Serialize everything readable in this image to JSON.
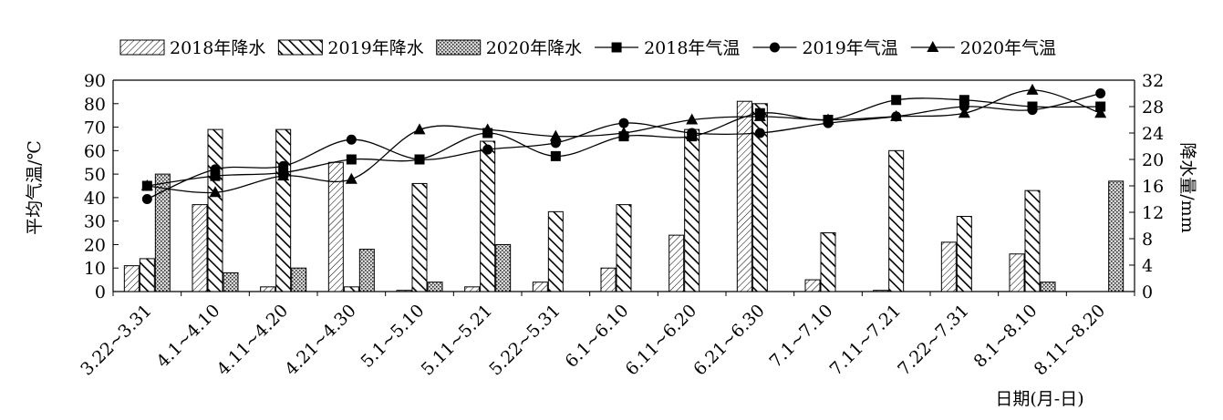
{
  "chart_data": {
    "type": "bar+line",
    "categories": [
      "3.22~3.31",
      "4.1~4.10",
      "4.11~4.20",
      "4.21~4.30",
      "5.1~5.10",
      "5.11~5.21",
      "5.22~5.31",
      "6.1~6.10",
      "6.11~6.20",
      "6.21~6.30",
      "7.1~7.10",
      "7.11~7.21",
      "7.22~7.31",
      "8.1~8.10",
      "8.11~8.20"
    ],
    "xlabel": "日期(月-日)",
    "ylabel_left": "平均气温/℃",
    "ylabel_right": "降水量/mm",
    "ylim_left": [
      0,
      90
    ],
    "yticks_left": [
      0,
      10,
      20,
      30,
      40,
      50,
      60,
      70,
      80,
      90
    ],
    "ylim_right": [
      0,
      32
    ],
    "yticks_right": [
      0,
      4,
      8,
      12,
      16,
      20,
      24,
      28,
      32
    ],
    "legend_position": "top",
    "series": [
      {
        "name": "2018年降水",
        "kind": "bar",
        "pattern": "light-diagonal",
        "values": [
          11,
          37,
          2,
          55,
          0.5,
          2,
          4,
          10,
          24,
          81,
          5,
          0.5,
          21,
          16,
          null
        ]
      },
      {
        "name": "2019年降水",
        "kind": "bar",
        "pattern": "wide-diagonal",
        "values": [
          14,
          69,
          69,
          2,
          46,
          64,
          34,
          37,
          69,
          80,
          25,
          60,
          32,
          43,
          null
        ]
      },
      {
        "name": "2020年降水",
        "kind": "bar",
        "pattern": "crosshatch",
        "values": [
          50,
          8,
          10,
          18,
          4,
          20,
          null,
          null,
          null,
          null,
          null,
          null,
          null,
          4,
          47
        ]
      },
      {
        "name": "2018年气温",
        "kind": "line",
        "marker": "square",
        "values": [
          16,
          17.5,
          18,
          20,
          20,
          24,
          20.5,
          23.5,
          23.5,
          27,
          26,
          29,
          29,
          28,
          28
        ]
      },
      {
        "name": "2019年气温",
        "kind": "line",
        "marker": "circle",
        "values": [
          14,
          18.5,
          19,
          23,
          20,
          21.5,
          22.5,
          25.5,
          24,
          24,
          25.5,
          26.5,
          28,
          27.5,
          30
        ]
      },
      {
        "name": "2020年气温",
        "kind": "line",
        "marker": "triangle",
        "values": [
          16,
          15,
          17.5,
          17,
          24.5,
          24.5,
          23.5,
          24,
          26,
          26.5,
          26,
          26.5,
          27,
          30.5,
          27
        ]
      }
    ]
  }
}
